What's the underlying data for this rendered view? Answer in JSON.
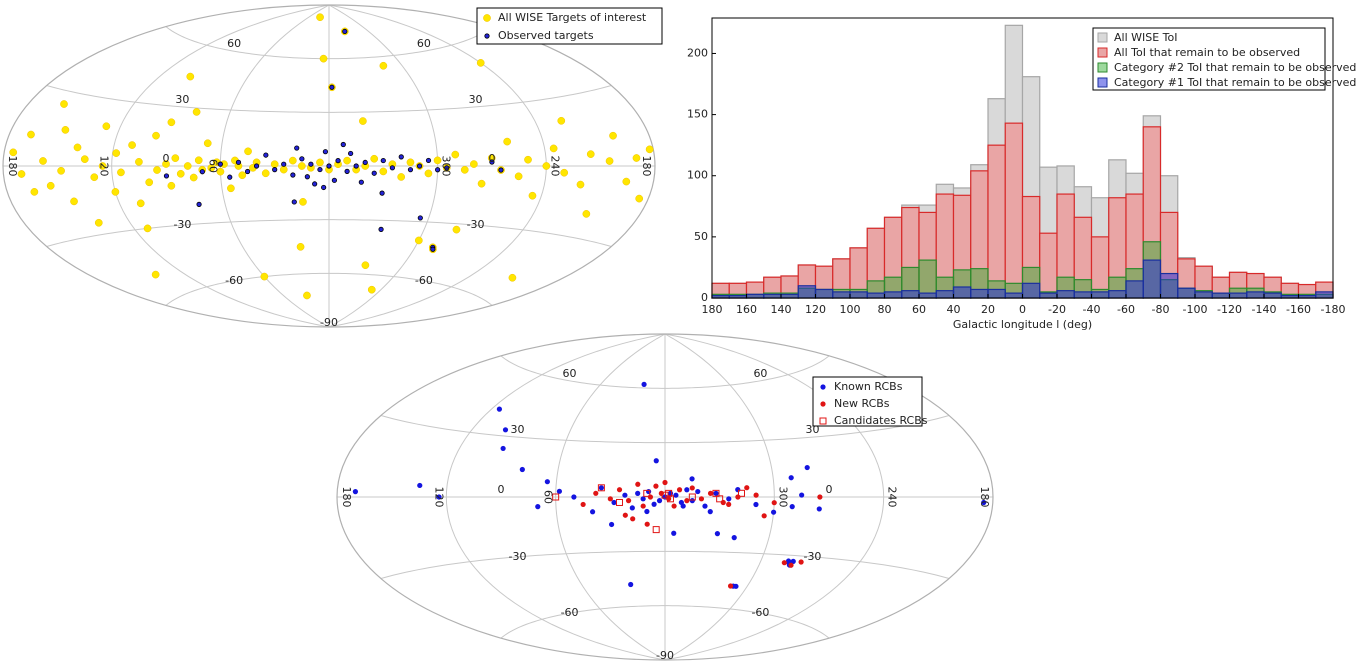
{
  "chart_data": [
    {
      "type": "aitoff",
      "xlim": [
        180,
        -180
      ],
      "ylim": [
        -90,
        90
      ],
      "xticks": [
        180,
        120,
        60,
        {
          "value": -60,
          "label": "300"
        },
        {
          "value": -120,
          "label": "240"
        },
        {
          "value": -180,
          "label": "180"
        }
      ],
      "yticks": [
        60,
        30,
        0,
        -30,
        -60,
        -90
      ],
      "grid": true,
      "legend": "upper right",
      "series": [
        {
          "name": "All WISE Targets of interest",
          "color": "#ffe600",
          "marker": "circle",
          "x": [
            175,
            170,
            168,
            165,
            160,
            158,
            155,
            150,
            148,
            145,
            140,
            138,
            135,
            130,
            128,
            125,
            120,
            118,
            115,
            112,
            110,
            108,
            105,
            100,
            98,
            95,
            92,
            90,
            88,
            85,
            82,
            80,
            78,
            75,
            72,
            70,
            68,
            65,
            62,
            60,
            58,
            55,
            52,
            50,
            48,
            45,
            42,
            40,
            35,
            30,
            25,
            20,
            15,
            10,
            5,
            0,
            -5,
            -10,
            -15,
            -20,
            -25,
            -30,
            -35,
            -40,
            -45,
            -50,
            -55,
            -60,
            -65,
            -70,
            -75,
            -80,
            -85,
            -90,
            -95,
            -100,
            -105,
            -110,
            -115,
            -120,
            -125,
            -130,
            -135,
            -140,
            -145,
            -150,
            -155,
            -160,
            -165,
            -170,
            -175,
            -178,
            -2,
            5,
            -25,
            28,
            -45,
            60,
            30,
            -50,
            -80,
            -72,
            -73,
            -60,
            -30,
            20,
            100,
            -120,
            -150,
            140,
            -20,
            15
          ],
          "values": [
            5,
            -3,
            12,
            -10,
            25,
            2,
            -8,
            15,
            -2,
            -15,
            8,
            -25,
            3,
            -5,
            18,
            0,
            -12,
            6,
            -3,
            -30,
            10,
            -18,
            2,
            -8,
            15,
            -2,
            22,
            1,
            -10,
            4,
            -4,
            28,
            0,
            -6,
            3,
            -2,
            12,
            -1,
            2,
            -3,
            1,
            -12,
            3,
            0,
            -5,
            8,
            -1,
            2,
            -4,
            1,
            -2,
            3,
            0,
            -1,
            2,
            -2,
            1,
            3,
            -2,
            0,
            4,
            -3,
            1,
            -6,
            2,
            0,
            -4,
            3,
            -1,
            6,
            -2,
            1,
            -9,
            4,
            -2,
            12,
            -5,
            3,
            -14,
            0,
            8,
            -3,
            20,
            -8,
            5,
            -20,
            2,
            12,
            -6,
            3,
            -12,
            6,
            44,
            60,
            75,
            83,
            55,
            -60,
            -72,
            -68,
            -33,
            -43,
            -44,
            -40,
            -55,
            -45,
            45,
            50,
            -50,
            -50,
            25,
            -20
          ]
        },
        {
          "name": "Observed targets",
          "color": "#2323d8",
          "marker": "dot",
          "x": [
            0,
            5,
            -5,
            10,
            -10,
            15,
            -15,
            20,
            -20,
            25,
            -25,
            30,
            -30,
            35,
            -35,
            40,
            -40,
            45,
            -45,
            50,
            -50,
            55,
            -55,
            60,
            -60,
            2,
            -3,
            8,
            -8,
            12,
            -12,
            18,
            -18,
            3,
            -65,
            70,
            -2,
            -25,
            -33,
            -72,
            -73,
            -55,
            -30,
            20,
            75,
            90,
            -90,
            -95
          ],
          "values": [
            0,
            -2,
            3,
            1,
            -3,
            4,
            0,
            -5,
            2,
            1,
            -4,
            -2,
            3,
            6,
            -1,
            0,
            5,
            -3,
            -2,
            2,
            0,
            -6,
            3,
            1,
            -2,
            8,
            -8,
            -10,
            12,
            -6,
            7,
            10,
            -9,
            -12,
            -1,
            -3,
            44,
            75,
            -35,
            -43,
            -44,
            -28,
            -15,
            -20,
            -20,
            -5,
            2,
            -2
          ]
        }
      ]
    },
    {
      "type": "histogram",
      "xlabel": "Galactic longitude l (deg)",
      "bins": [
        180,
        170,
        160,
        150,
        140,
        130,
        120,
        110,
        100,
        90,
        80,
        70,
        60,
        50,
        40,
        30,
        20,
        10,
        0,
        -10,
        -20,
        -30,
        -40,
        -50,
        -60,
        -70,
        -80,
        -90,
        -100,
        -110,
        -120,
        -130,
        -140,
        -150,
        -160,
        -170,
        -180
      ],
      "xlim": [
        180,
        -180
      ],
      "ylim": [
        0,
        229
      ],
      "xticks": [
        180,
        160,
        140,
        120,
        100,
        80,
        60,
        40,
        20,
        0,
        -20,
        -40,
        -60,
        -80,
        -100,
        -120,
        -140,
        -160,
        -180
      ],
      "yticks": [
        0,
        50,
        100,
        150,
        200
      ],
      "grid": false,
      "legend": "upper right",
      "series": [
        {
          "name": "All WISE ToI",
          "color": "#d9d9d9",
          "edgecolor": "#a6a6a6",
          "values": [
            12,
            12,
            13,
            17,
            18,
            27,
            26,
            32,
            41,
            57,
            66,
            76,
            76,
            93,
            90,
            109,
            163,
            223,
            181,
            107,
            108,
            91,
            82,
            113,
            102,
            149,
            100,
            33,
            26,
            17,
            21,
            20,
            17,
            12,
            11,
            13
          ]
        },
        {
          "name": "All ToI that remain to be observed",
          "color": "#e9a5a5",
          "edgecolor": "#d82a2a",
          "values": [
            12,
            12,
            13,
            17,
            18,
            27,
            26,
            32,
            41,
            57,
            66,
            74,
            70,
            85,
            84,
            104,
            125,
            143,
            83,
            53,
            85,
            66,
            50,
            82,
            85,
            140,
            70,
            32,
            26,
            17,
            21,
            20,
            17,
            12,
            11,
            13
          ]
        },
        {
          "name": "Category #2 ToI that remain to be observed",
          "color": "rgba(40,170,40,0.45)",
          "edgecolor": "#2e8b2e",
          "values": [
            3,
            3,
            3,
            4,
            4,
            8,
            7,
            7,
            7,
            14,
            17,
            25,
            31,
            17,
            23,
            24,
            14,
            12,
            25,
            5,
            17,
            15,
            7,
            17,
            24,
            46,
            15,
            8,
            6,
            4,
            8,
            8,
            5,
            3,
            3,
            3
          ]
        },
        {
          "name": "Category #1 ToI that remain to be observed",
          "color": "rgba(30,40,220,0.5)",
          "edgecolor": "#1a2f9e",
          "values": [
            2,
            2,
            3,
            3,
            3,
            10,
            7,
            5,
            5,
            4,
            5,
            6,
            4,
            6,
            9,
            7,
            7,
            4,
            12,
            4,
            6,
            5,
            5,
            6,
            14,
            31,
            20,
            8,
            5,
            4,
            4,
            5,
            4,
            2,
            2,
            5
          ]
        }
      ]
    },
    {
      "type": "aitoff",
      "xlim": [
        180,
        -180
      ],
      "ylim": [
        -90,
        90
      ],
      "xticks": [
        180,
        120,
        60,
        {
          "value": -60,
          "label": "300"
        },
        {
          "value": -120,
          "label": "240"
        },
        {
          "value": -180,
          "label": "180"
        }
      ],
      "yticks": [
        60,
        30,
        0,
        -30,
        -60,
        -90
      ],
      "grid": true,
      "legend": "upper right",
      "series": [
        {
          "name": "Known RCBs",
          "color": "#1414e0",
          "marker": "circle",
          "x": [
            0,
            3,
            -3,
            6,
            -6,
            9,
            -9,
            12,
            -12,
            15,
            -15,
            18,
            -18,
            22,
            -22,
            28,
            -28,
            35,
            -35,
            40,
            -40,
            50,
            -50,
            58,
            -60,
            -70,
            -75,
            70,
            65,
            80,
            95,
            100,
            115,
            124,
            135,
            170,
            -175,
            -5,
            -15,
            5,
            30,
            -40,
            -30,
            -70,
            -80,
            -78,
            -79,
            -80,
            -77,
            -85,
            20,
            25,
            -50,
            -52,
            -10,
            10,
            -25
          ],
          "values": [
            0,
            -2,
            2,
            -4,
            1,
            3,
            -3,
            -1,
            4,
            2,
            -2,
            -6,
            3,
            1,
            -5,
            -3,
            2,
            5,
            -1,
            -8,
            4,
            0,
            -4,
            3,
            -8,
            -5,
            1,
            -5,
            8,
            14,
            24,
            33,
            42,
            0,
            5,
            2,
            -2,
            -20,
            10,
            20,
            -15,
            -22,
            -20,
            10,
            15,
            -34,
            -35,
            -33,
            -33,
            -6,
            62,
            -48,
            -48,
            -48,
            -5,
            -8,
            -8
          ]
        },
        {
          "name": "New RCBs",
          "color": "#e01414",
          "marker": "circle",
          "x": [
            2,
            -2,
            5,
            -5,
            8,
            -8,
            12,
            -12,
            15,
            -15,
            20,
            -20,
            25,
            -25,
            30,
            -32,
            38,
            -40,
            45,
            10,
            -45,
            22,
            -50,
            -60,
            -80,
            -85,
            -75,
            -48,
            -55,
            -85,
            0,
            18,
            -35
          ],
          "values": [
            2,
            -1,
            6,
            -5,
            0,
            4,
            -5,
            -2,
            7,
            5,
            -2,
            -1,
            4,
            2,
            -1,
            -3,
            2,
            0,
            -4,
            -15,
            5,
            -10,
            1,
            -3,
            -35,
            -33,
            -34,
            -48,
            -10,
            0,
            8,
            -12,
            -4
          ]
        },
        {
          "name": "Candidates RCBs",
          "color": "#e01414",
          "marker": "square",
          "x": [
            0,
            -3,
            10,
            -15,
            25,
            -28,
            60,
            5,
            35,
            -42,
            -30,
            -2
          ],
          "values": [
            1,
            -1,
            2,
            0,
            -3,
            2,
            0,
            -18,
            5,
            2,
            -1,
            2
          ]
        }
      ]
    }
  ]
}
